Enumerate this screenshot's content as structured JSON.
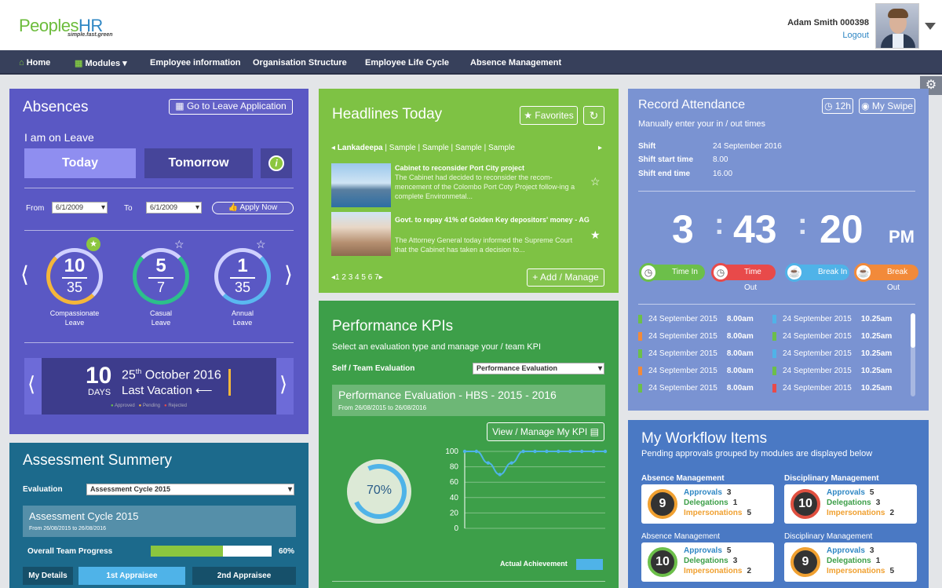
{
  "header": {
    "logo_a": "Peoples",
    "logo_b": "HR",
    "tagline": "simple.fast.green",
    "user": "Adam Smith 000398",
    "logout": "Logout"
  },
  "nav": {
    "home": "Home",
    "modules": "Modules",
    "items": [
      "Employee information",
      "Organisation Structure",
      "Employee Life Cycle",
      "Absence Management"
    ]
  },
  "absences": {
    "title": "Absences",
    "goto": "Go to Leave Application",
    "on_leave": "I am on Leave",
    "today": "Today",
    "tomorrow": "Tomorrow",
    "from_label": "From",
    "from": "6/1/2009",
    "to_label": "To",
    "to": "6/1/2009",
    "apply": "Apply Now",
    "rings": [
      {
        "top": "10",
        "bottom": "35",
        "label1": "Compassionate",
        "label2": "Leave"
      },
      {
        "top": "5",
        "bottom": "7",
        "label1": "Casual",
        "label2": "Leave"
      },
      {
        "top": "1",
        "bottom": "35",
        "label1": "Annual",
        "label2": "Leave"
      }
    ],
    "vac_days": "10",
    "days_label": "DAYS",
    "vac_day": "25",
    "vac_sup": "th",
    "vac_month": "October 2016",
    "last_vacation": "Last Vacation",
    "legend": [
      "Approved",
      "Pending",
      "Rejected"
    ]
  },
  "headlines": {
    "title": "Headlines Today",
    "favorites": "Favorites",
    "tabs": [
      "Lankadeepa",
      "Sample",
      "Sample",
      "Sample",
      "Sample"
    ],
    "news": [
      {
        "title": "Cabinet to reconsider Port City project",
        "body": "The Cabinet had decided to reconsider the recom-mencement of the Colombo Port Coty Project follow-ing a complete Environmetal..."
      },
      {
        "title": "Govt. to repay 41% of Golden Key depositors' money - AG",
        "body": "The Attorney General today informed the Supreme Court that the Cabinet has taken a decision to..."
      }
    ],
    "pages": "1 2 3 4 5 6 7",
    "add": "Add / Manage"
  },
  "record": {
    "title": "Record Attendance",
    "h12": "12h",
    "myswipe": "My Swipe",
    "subtitle": "Manually enter your in / out times",
    "shift_label": "Shift",
    "shift": "24 September 2016",
    "start_label": "Shift start time",
    "start": "8.00",
    "end_label": "Shift end time",
    "end": "16.00",
    "hh": "3",
    "mm": "43",
    "ss": "20",
    "ampm": "PM",
    "actions": [
      "Time In",
      "Time Out",
      "Break In",
      "Break Out"
    ],
    "log": [
      {
        "d1": "24 September 2015",
        "t1": "8.00am",
        "d2": "24 September 2015",
        "t2": "10.25am",
        "c1": "#6cbf4a",
        "c2": "#4fb3e8"
      },
      {
        "d1": "24 September 2015",
        "t1": "8.00am",
        "d2": "24 September 2015",
        "t2": "10.25am",
        "c1": "#f28a3a",
        "c2": "#6cbf4a"
      },
      {
        "d1": "24 September 2015",
        "t1": "8.00am",
        "d2": "24 September 2015",
        "t2": "10.25am",
        "c1": "#6cbf4a",
        "c2": "#4fb3e8"
      },
      {
        "d1": "24 September 2015",
        "t1": "8.00am",
        "d2": "24 September 2015",
        "t2": "10.25am",
        "c1": "#f28a3a",
        "c2": "#6cbf4a"
      },
      {
        "d1": "24 September 2015",
        "t1": "8.00am",
        "d2": "24 September 2015",
        "t2": "10.25am",
        "c1": "#6cbf4a",
        "c2": "#e84a4a"
      }
    ]
  },
  "kpi": {
    "title": "Performance KPIs",
    "subtitle": "Select an evaluation type and manage your / team KPI",
    "eval_label": "Self / Team Evaluation",
    "eval_value": "Performance Evaluation",
    "box_title": "Performance Evaluation - HBS - 2015 - 2016",
    "box_dates": "From 26/08/2015 to 26/08/2016",
    "view": "View / Manage My KPI",
    "percent": "70%",
    "legend": "Actual Achievement"
  },
  "chart_data": {
    "type": "line",
    "series": [
      {
        "name": "Actual Achievement",
        "values": [
          100,
          100,
          85,
          70,
          85,
          100,
          100,
          100,
          100,
          100,
          100,
          100,
          100
        ]
      }
    ],
    "ylim": [
      0,
      100
    ],
    "yticks": [
      "100",
      "80",
      "60",
      "40",
      "20",
      "0"
    ],
    "grid": true
  },
  "assessment": {
    "title": "Assessment Summery",
    "eval_label": "Evaluation",
    "eval_value": "Assessment Cycle 2015",
    "box_title": "Assessment Cycle 2015",
    "box_dates": "From 26/08/2015 to 26/08/2016",
    "progress_label": "Overall Team Progress",
    "progress_value": "60%",
    "progress_fraction": 0.6,
    "tabs": [
      "My Details",
      "1st Appraisee",
      "2nd Appraisee"
    ]
  },
  "workflow": {
    "title": "My Workflow Items",
    "subtitle": "Pending approvals grouped by modules are displayed below",
    "labels": {
      "approvals": "Approvals",
      "delegations": "Delegations",
      "impersonations": "Impersonations"
    },
    "cards": [
      {
        "module": "Absence Management",
        "count": "9",
        "approvals": "3",
        "delegations": "1",
        "impersonations": "5",
        "color": "#f0a030"
      },
      {
        "module": "Disciplinary Management",
        "count": "10",
        "approvals": "5",
        "delegations": "3",
        "impersonations": "2",
        "color": "#e05040"
      },
      {
        "module": "Absence Management",
        "count": "10",
        "approvals": "5",
        "delegations": "3",
        "impersonations": "2",
        "color": "#6cbf4a"
      },
      {
        "module": "Disciplinary Management",
        "count": "9",
        "approvals": "3",
        "delegations": "1",
        "impersonations": "5",
        "color": "#f0a030"
      }
    ]
  }
}
